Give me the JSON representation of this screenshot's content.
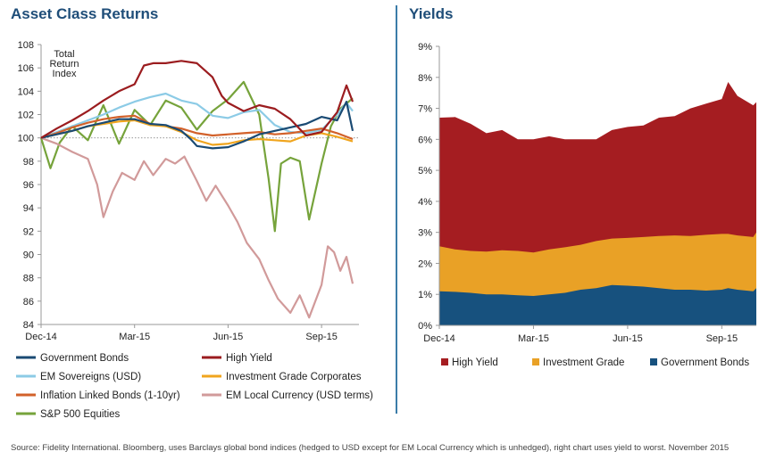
{
  "colors": {
    "title": "#1f4e79",
    "government_bonds": "#1a4a73",
    "high_yield": "#9b1c1f",
    "em_sovereigns": "#8ccbe6",
    "investment_grade_corporates": "#f0a51e",
    "inflation_linked": "#d2612a",
    "em_local_currency": "#d19a9a",
    "sp500": "#76a33b",
    "yield_high_yield": "#a51d21",
    "yield_investment_grade": "#e9a126",
    "yield_government_bonds": "#17517e"
  },
  "footnote": "Source: Fidelity International. Bloomberg, uses Barclays global bond indices (hedged to USD except for EM Local Currency which is unhedged), right chart uses yield to worst. November 2015",
  "chart_data": [
    {
      "type": "line",
      "title": "Asset Class Returns",
      "annotation": [
        "Total",
        "Return",
        "Index"
      ],
      "ylim": [
        84,
        108
      ],
      "y_ticks": [
        84,
        86,
        88,
        90,
        92,
        94,
        96,
        98,
        100,
        102,
        104,
        106,
        108
      ],
      "x_tick_labels": [
        "Dec-14",
        "Mar-15",
        "Jun-15",
        "Sep-15"
      ],
      "x_tick_positions": [
        0,
        3,
        6,
        9
      ],
      "xlim": [
        0,
        10.2
      ],
      "reference_line": 100,
      "series": [
        {
          "name": "Government Bonds",
          "color_key": "government_bonds",
          "x": [
            0,
            0.5,
            1,
            1.5,
            2,
            2.5,
            3,
            3.5,
            4,
            4.5,
            4.8,
            5,
            5.5,
            6,
            6.5,
            7,
            7.5,
            8,
            8.5,
            9,
            9.5,
            9.8,
            10
          ],
          "values": [
            100,
            100.3,
            100.6,
            101.0,
            101.3,
            101.6,
            101.6,
            101.2,
            101.1,
            100.6,
            99.9,
            99.3,
            99.1,
            99.2,
            99.7,
            100.3,
            100.6,
            100.9,
            101.2,
            101.8,
            101.5,
            103.1,
            100.6
          ]
        },
        {
          "name": "High Yield",
          "color_key": "high_yield",
          "x": [
            0,
            0.5,
            1,
            1.5,
            2,
            2.5,
            3,
            3.3,
            3.6,
            4,
            4.5,
            5,
            5.5,
            5.8,
            6,
            6.5,
            7,
            7.5,
            8,
            8.5,
            9,
            9.5,
            9.8,
            10
          ],
          "values": [
            100,
            100.8,
            101.5,
            102.3,
            103.2,
            104.0,
            104.6,
            106.2,
            106.4,
            106.4,
            106.6,
            106.4,
            105.2,
            103.6,
            103.0,
            102.3,
            102.8,
            102.5,
            101.6,
            100.2,
            100.5,
            102.2,
            104.5,
            103.1
          ]
        },
        {
          "name": "EM Sovereigns (USD)",
          "color_key": "em_sovereigns",
          "x": [
            0,
            0.5,
            1,
            1.5,
            2,
            2.5,
            3,
            3.5,
            4,
            4.5,
            5,
            5.5,
            6,
            6.5,
            7,
            7.5,
            8,
            8.5,
            9,
            9.5,
            9.8,
            10
          ],
          "values": [
            100,
            100.5,
            101.0,
            101.5,
            102.0,
            102.6,
            103.1,
            103.5,
            103.8,
            103.2,
            102.9,
            101.9,
            101.7,
            102.2,
            102.4,
            101.1,
            100.5,
            100.4,
            100.7,
            102.0,
            103.0,
            102.3
          ]
        },
        {
          "name": "Investment Grade Corporates",
          "color_key": "investment_grade_corporates",
          "x": [
            0,
            0.5,
            1,
            1.5,
            2,
            2.5,
            3,
            3.5,
            4,
            4.5,
            5,
            5.5,
            6,
            6.5,
            7,
            7.5,
            8,
            8.5,
            9,
            9.5,
            10
          ],
          "values": [
            100,
            100.3,
            100.6,
            101.0,
            101.2,
            101.4,
            101.5,
            101.1,
            101.0,
            100.5,
            99.8,
            99.4,
            99.5,
            99.8,
            99.9,
            99.8,
            99.7,
            100.2,
            100.4,
            100.1,
            99.7
          ]
        },
        {
          "name": "Inflation Linked Bonds (1-10yr)",
          "color_key": "inflation_linked",
          "x": [
            0,
            0.5,
            1,
            1.5,
            2,
            2.5,
            3,
            3.5,
            4,
            4.5,
            5,
            5.5,
            6,
            6.5,
            7,
            7.5,
            8,
            8.5,
            9,
            9.5,
            10
          ],
          "values": [
            100,
            100.4,
            100.9,
            101.3,
            101.6,
            101.8,
            101.9,
            101.2,
            101.0,
            100.8,
            100.4,
            100.2,
            100.3,
            100.4,
            100.5,
            100.3,
            100.4,
            100.6,
            100.8,
            100.4,
            99.9
          ]
        },
        {
          "name": "EM Local Currency (USD terms)",
          "color_key": "em_local_currency",
          "x": [
            0,
            0.5,
            1,
            1.5,
            1.8,
            2,
            2.3,
            2.6,
            3,
            3.3,
            3.6,
            4,
            4.3,
            4.6,
            5,
            5.3,
            5.6,
            6,
            6.3,
            6.6,
            7,
            7.3,
            7.6,
            8,
            8.3,
            8.6,
            9,
            9.2,
            9.4,
            9.6,
            9.8,
            10
          ],
          "values": [
            100,
            99.5,
            98.8,
            98.2,
            96.0,
            93.2,
            95.4,
            97.0,
            96.4,
            98.0,
            96.8,
            98.2,
            97.8,
            98.4,
            96.3,
            94.6,
            95.9,
            94.2,
            92.8,
            91.0,
            89.6,
            87.8,
            86.2,
            85.0,
            86.5,
            84.6,
            87.4,
            90.7,
            90.2,
            88.6,
            89.8,
            87.5
          ]
        },
        {
          "name": "S&P 500 Equities",
          "color_key": "sp500",
          "x": [
            0,
            0.3,
            0.6,
            1,
            1.5,
            2,
            2.5,
            3,
            3.5,
            4,
            4.5,
            5,
            5.5,
            6,
            6.5,
            7,
            7.3,
            7.5,
            7.7,
            8,
            8.3,
            8.6,
            9,
            9.3,
            9.6,
            10
          ],
          "values": [
            100,
            97.4,
            99.6,
            101.0,
            99.8,
            102.8,
            99.5,
            102.4,
            101.1,
            103.2,
            102.6,
            100.7,
            102.3,
            103.3,
            104.8,
            102.0,
            96.5,
            92.0,
            97.8,
            98.3,
            98.0,
            93.0,
            97.8,
            101.0,
            102.5,
            103.4
          ]
        }
      ]
    },
    {
      "type": "area",
      "title": "Yields",
      "ylim": [
        0,
        9
      ],
      "y_tick_labels": [
        "0%",
        "1%",
        "2%",
        "3%",
        "4%",
        "5%",
        "6%",
        "7%",
        "8%",
        "9%"
      ],
      "x_tick_labels": [
        "Dec-14",
        "Mar-15",
        "Jun-15",
        "Sep-15"
      ],
      "x_tick_positions": [
        0,
        3,
        6,
        9
      ],
      "xlim": [
        0,
        10.1
      ],
      "x": [
        0,
        0.5,
        1,
        1.5,
        2,
        2.5,
        3,
        3.5,
        4,
        4.5,
        5,
        5.5,
        6,
        6.5,
        7,
        7.5,
        8,
        8.5,
        9,
        9.2,
        9.5,
        10,
        10.1
      ],
      "series": [
        {
          "name": "Government Bonds",
          "color_key": "yield_government_bonds",
          "values": [
            1.1,
            1.08,
            1.05,
            1.0,
            1.0,
            0.97,
            0.95,
            1.0,
            1.05,
            1.15,
            1.2,
            1.3,
            1.28,
            1.25,
            1.2,
            1.15,
            1.15,
            1.12,
            1.15,
            1.2,
            1.15,
            1.1,
            1.2
          ]
        },
        {
          "name": "Investment Grade",
          "color_key": "yield_investment_grade",
          "values": [
            2.55,
            2.45,
            2.4,
            2.38,
            2.42,
            2.4,
            2.35,
            2.45,
            2.52,
            2.6,
            2.72,
            2.8,
            2.82,
            2.85,
            2.88,
            2.9,
            2.88,
            2.92,
            2.95,
            2.95,
            2.9,
            2.85,
            3.0
          ]
        },
        {
          "name": "High Yield",
          "color_key": "yield_high_yield",
          "values": [
            6.7,
            6.72,
            6.5,
            6.2,
            6.3,
            6.0,
            6.0,
            6.1,
            6.0,
            6.0,
            6.0,
            6.3,
            6.4,
            6.45,
            6.7,
            6.75,
            7.0,
            7.15,
            7.3,
            7.85,
            7.4,
            7.1,
            7.2
          ]
        }
      ]
    }
  ]
}
